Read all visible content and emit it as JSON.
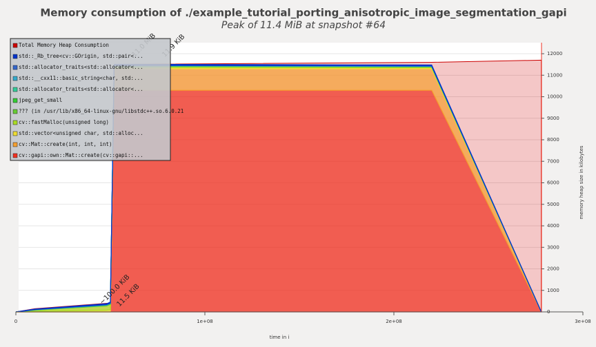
{
  "chart_data": {
    "type": "stacked-area",
    "title": "Memory consumption of ./example_tutorial_porting_anisotropic_image_segmentation_gapi",
    "subtitle": "Peak of 11.4 MiB at snapshot #64",
    "x_label": "time in i",
    "y_label": "memory heap size in kilobytes",
    "x": [
      0,
      10000000,
      48000000,
      50000000,
      52000000,
      220000000,
      278000000
    ],
    "xlim": [
      0,
      300000000
    ],
    "xticks": [
      0,
      {
        "value": 100000000,
        "label": "1e+08"
      },
      {
        "value": 200000000,
        "label": "2e+08"
      },
      {
        "value": 300000000,
        "label": "3e+08"
      }
    ],
    "ylim": [
      0,
      12000
    ],
    "yticks": [
      0,
      1000,
      2000,
      3000,
      4000,
      5000,
      6000,
      7000,
      8000,
      9000,
      10000,
      11000,
      12000
    ],
    "grid": true,
    "series": [
      {
        "name": "Total Memory Heap Consumption",
        "color": "#cc0000",
        "stack": false,
        "values": [
          0,
          150,
          400,
          400,
          11500,
          11600,
          11700
        ]
      },
      {
        "name": "std::_Rb_tree<cv::GOrigin, std::pair<...",
        "color": "#0033cc",
        "values": [
          0,
          20,
          40,
          50,
          40,
          40,
          0
        ]
      },
      {
        "name": "std::allocator_traits<std::allocator<...",
        "color": "#3366cc",
        "values": [
          0,
          5,
          10,
          10,
          10,
          10,
          0
        ]
      },
      {
        "name": "std::__cxx11::basic_string<char, std:...",
        "color": "#33aacc",
        "values": [
          0,
          5,
          10,
          10,
          10,
          10,
          0
        ]
      },
      {
        "name": "std::allocator_traits<std::allocator<...",
        "color": "#33cc99",
        "values": [
          0,
          5,
          10,
          10,
          10,
          10,
          0
        ]
      },
      {
        "name": "jpeg_get_small",
        "color": "#33cc33",
        "values": [
          0,
          5,
          10,
          10,
          5,
          5,
          0
        ]
      },
      {
        "name": "??? (in /usr/lib/x86_64-linux-gnu/libstdc++.so.6.0.21",
        "color": "#66cc33",
        "values": [
          0,
          10,
          20,
          20,
          20,
          20,
          0
        ]
      },
      {
        "name": "cv::fastMalloc(unsigned long)",
        "color": "#aadd22",
        "values": [
          0,
          50,
          200,
          250,
          50,
          30,
          0
        ]
      },
      {
        "name": "std::vector<unsigned char, std::alloc...",
        "color": "#eedd33",
        "values": [
          0,
          30,
          80,
          100,
          60,
          50,
          0
        ]
      },
      {
        "name": "cv::Mat::create(int, int, int)",
        "color": "#f5a030",
        "values": [
          0,
          0,
          0,
          0,
          1000,
          1000,
          0
        ]
      },
      {
        "name": "cv::gapi::own::Mat::create(cv::gapi::...",
        "color": "#f03020",
        "values": [
          0,
          0,
          0,
          0,
          10300,
          10300,
          0
        ]
      }
    ],
    "annotations": [
      {
        "text": "~100.0 KiB",
        "x": 45000000,
        "y": 400
      },
      {
        "text": "11.5 KiB",
        "x": 54000000,
        "y": 300
      },
      {
        "text": "11.9 KiB",
        "x": 78000000,
        "y": 11900
      },
      {
        "text": "11.0 MiB",
        "x": 62000000,
        "y": 11900
      }
    ]
  }
}
